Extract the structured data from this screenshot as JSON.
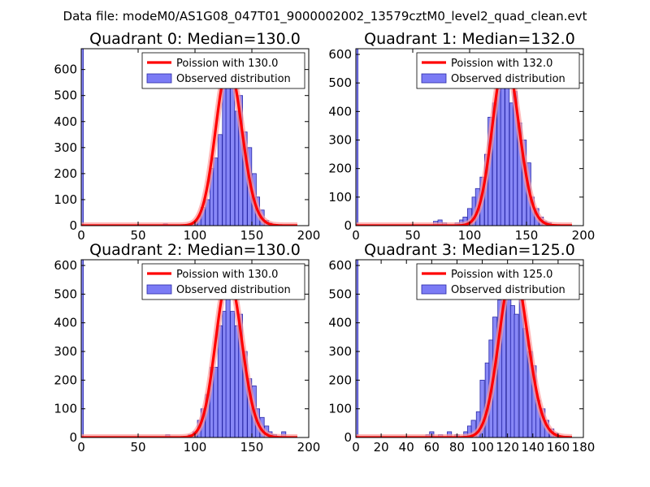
{
  "suptitle": "Data file: modeM0/AS1G08_047T01_9000002002_13579cztM0_level2_quad_clean.evt",
  "colors": {
    "bars": "#7b7bf5",
    "bar_edge": "#2a2aa8",
    "curve": "#ff0000",
    "curve_halo": "#ff9a9a"
  },
  "chart_data": [
    {
      "type": "bar",
      "title": "Quadrant 0: Median=130.0",
      "median": 130.0,
      "xlim": [
        0,
        200
      ],
      "ylim": [
        0,
        680
      ],
      "xticks": [
        0,
        50,
        100,
        150,
        200
      ],
      "xtick_labels": [
        "0",
        "50",
        "100",
        "150",
        "200"
      ],
      "yticks": [
        0,
        100,
        200,
        300,
        400,
        500,
        600
      ],
      "ytick_labels": [
        "0",
        "100",
        "200",
        "300",
        "400",
        "500",
        "600"
      ],
      "bin_width": 3.7,
      "bins": [
        [
          0,
          680
        ],
        [
          74,
          7
        ],
        [
          96,
          6
        ],
        [
          100,
          15
        ],
        [
          104,
          35
        ],
        [
          107,
          70
        ],
        [
          111,
          100
        ],
        [
          115,
          220
        ],
        [
          118,
          260
        ],
        [
          122,
          350
        ],
        [
          126,
          550
        ],
        [
          129,
          600
        ],
        [
          133,
          580
        ],
        [
          137,
          440
        ],
        [
          140,
          500
        ],
        [
          144,
          360
        ],
        [
          148,
          300
        ],
        [
          152,
          200
        ],
        [
          155,
          110
        ],
        [
          159,
          60
        ],
        [
          163,
          20
        ],
        [
          166,
          10
        ]
      ],
      "legend": {
        "curve_label": "Poission with 130.0",
        "bars_label": "Observed distribution",
        "position": "upper-right"
      }
    },
    {
      "type": "bar",
      "title": "Quadrant 1: Median=132.0",
      "median": 132.0,
      "xlim": [
        0,
        200
      ],
      "ylim": [
        0,
        620
      ],
      "xticks": [
        0,
        50,
        100,
        150,
        200
      ],
      "xtick_labels": [
        "0",
        "50",
        "100",
        "150",
        "200"
      ],
      "yticks": [
        0,
        100,
        200,
        300,
        400,
        500,
        600
      ],
      "ytick_labels": [
        "0",
        "100",
        "200",
        "300",
        "400",
        "500",
        "600"
      ],
      "bin_width": 3.7,
      "bins": [
        [
          0,
          620
        ],
        [
          70,
          15
        ],
        [
          74,
          20
        ],
        [
          78,
          10
        ],
        [
          89,
          10
        ],
        [
          93,
          20
        ],
        [
          96,
          30
        ],
        [
          100,
          60
        ],
        [
          104,
          100
        ],
        [
          107,
          130
        ],
        [
          111,
          170
        ],
        [
          115,
          250
        ],
        [
          118,
          380
        ],
        [
          122,
          430
        ],
        [
          126,
          510
        ],
        [
          129,
          570
        ],
        [
          133,
          510
        ],
        [
          137,
          430
        ],
        [
          140,
          470
        ],
        [
          144,
          360
        ],
        [
          148,
          300
        ],
        [
          152,
          220
        ],
        [
          155,
          100
        ],
        [
          159,
          60
        ],
        [
          163,
          30
        ],
        [
          166,
          15
        ],
        [
          170,
          10
        ]
      ],
      "legend": {
        "curve_label": "Poission with 132.0",
        "bars_label": "Observed distribution",
        "position": "upper-right"
      }
    },
    {
      "type": "bar",
      "title": "Quadrant 2: Median=130.0",
      "median": 130.0,
      "xlim": [
        0,
        200
      ],
      "ylim": [
        0,
        620
      ],
      "xticks": [
        0,
        50,
        100,
        150,
        200
      ],
      "xtick_labels": [
        "0",
        "50",
        "100",
        "150",
        "200"
      ],
      "yticks": [
        0,
        100,
        200,
        300,
        400,
        500,
        600
      ],
      "ytick_labels": [
        "0",
        "100",
        "200",
        "300",
        "400",
        "500",
        "600"
      ],
      "bin_width": 3.7,
      "bins": [
        [
          0,
          620
        ],
        [
          76,
          10
        ],
        [
          96,
          10
        ],
        [
          100,
          20
        ],
        [
          104,
          60
        ],
        [
          107,
          100
        ],
        [
          111,
          150
        ],
        [
          115,
          245
        ],
        [
          118,
          245
        ],
        [
          122,
          390
        ],
        [
          126,
          440
        ],
        [
          129,
          545
        ],
        [
          133,
          440
        ],
        [
          137,
          390
        ],
        [
          140,
          430
        ],
        [
          144,
          300
        ],
        [
          148,
          205
        ],
        [
          152,
          180
        ],
        [
          155,
          100
        ],
        [
          159,
          70
        ],
        [
          163,
          40
        ],
        [
          166,
          20
        ],
        [
          170,
          10
        ],
        [
          178,
          20
        ]
      ],
      "legend": {
        "curve_label": "Poission with 130.0",
        "bars_label": "Observed distribution",
        "position": "upper-right"
      }
    },
    {
      "type": "bar",
      "title": "Quadrant 3: Median=125.0",
      "median": 125.0,
      "xlim": [
        0,
        180
      ],
      "ylim": [
        0,
        620
      ],
      "xticks": [
        0,
        20,
        40,
        60,
        80,
        100,
        120,
        140,
        160,
        180
      ],
      "xtick_labels": [
        "0",
        "20",
        "40",
        "60",
        "80",
        "100",
        "120",
        "140",
        "160",
        "180"
      ],
      "yticks": [
        0,
        100,
        200,
        300,
        400,
        500,
        600
      ],
      "ytick_labels": [
        "0",
        "100",
        "200",
        "300",
        "400",
        "500",
        "600"
      ],
      "bin_width": 3.4,
      "bins": [
        [
          0,
          620
        ],
        [
          57,
          10
        ],
        [
          60,
          20
        ],
        [
          67,
          10
        ],
        [
          74,
          20
        ],
        [
          80,
          10
        ],
        [
          87,
          20
        ],
        [
          90,
          40
        ],
        [
          93,
          60
        ],
        [
          97,
          90
        ],
        [
          100,
          200
        ],
        [
          104,
          260
        ],
        [
          107,
          340
        ],
        [
          110,
          420
        ],
        [
          114,
          480
        ],
        [
          117,
          550
        ],
        [
          121,
          570
        ],
        [
          124,
          460
        ],
        [
          127,
          430
        ],
        [
          131,
          540
        ],
        [
          134,
          380
        ],
        [
          138,
          300
        ],
        [
          141,
          250
        ],
        [
          144,
          130
        ],
        [
          148,
          100
        ],
        [
          151,
          60
        ],
        [
          155,
          30
        ],
        [
          158,
          15
        ]
      ],
      "legend": {
        "curve_label": "Poission with 125.0",
        "bars_label": "Observed distribution",
        "position": "upper-right"
      }
    }
  ]
}
